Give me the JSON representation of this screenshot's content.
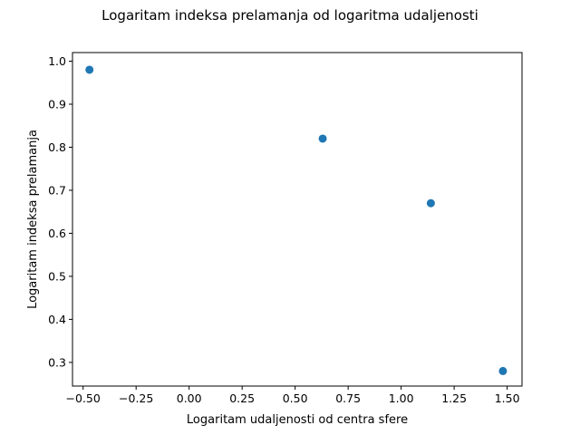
{
  "chart_data": {
    "type": "scatter",
    "title": "Logaritam indeksa prelamanja od logaritma udaljenosti",
    "xlabel": "Logaritam udaljenosti od centra sfere",
    "ylabel": "Logaritam indeksa prelamanja",
    "xlim": [
      -0.55,
      1.57
    ],
    "ylim": [
      0.245,
      1.02
    ],
    "xticks": [
      -0.5,
      -0.25,
      0.0,
      0.25,
      0.5,
      0.75,
      1.0,
      1.25,
      1.5
    ],
    "xtick_labels": [
      "−0.50",
      "−0.25",
      "0.00",
      "0.25",
      "0.50",
      "0.75",
      "1.00",
      "1.25",
      "1.50"
    ],
    "yticks": [
      0.3,
      0.4,
      0.5,
      0.6,
      0.7,
      0.8,
      0.9,
      1.0
    ],
    "ytick_labels": [
      "0.3",
      "0.4",
      "0.5",
      "0.6",
      "0.7",
      "0.8",
      "0.9",
      "1.0"
    ],
    "grid": false,
    "series": [
      {
        "x": [
          -0.47,
          0.63,
          1.14,
          1.48
        ],
        "y": [
          0.98,
          0.82,
          0.67,
          0.28
        ],
        "color": "#1f77b4"
      }
    ]
  }
}
